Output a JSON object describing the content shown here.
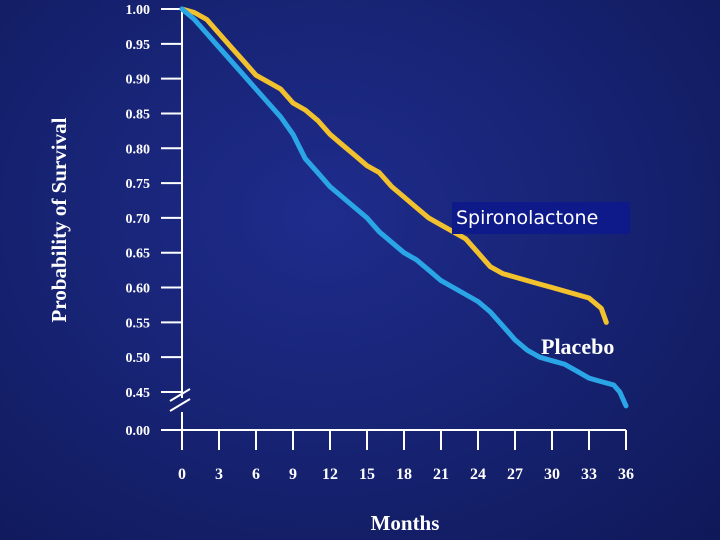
{
  "chart_data": {
    "type": "line",
    "ylabel": "Probability of Survival",
    "xlabel": "Months",
    "y_ticks": [
      "1.00",
      "0.95",
      "0.90",
      "0.85",
      "0.80",
      "0.75",
      "0.70",
      "0.65",
      "0.60",
      "0.55",
      "0.50",
      "0.45",
      "0.00"
    ],
    "x_ticks": [
      "0",
      "3",
      "6",
      "9",
      "12",
      "15",
      "18",
      "21",
      "24",
      "27",
      "30",
      "33",
      "36"
    ],
    "ylim": [
      0.45,
      1.0
    ],
    "xlim": [
      0,
      36
    ],
    "axis_break": true,
    "series": [
      {
        "name": "Spironolactone",
        "color": "#f2c12e",
        "x": [
          0,
          1,
          2,
          3,
          4,
          5,
          6,
          7,
          8,
          9,
          10,
          11,
          12,
          13,
          14,
          15,
          16,
          17,
          18,
          19,
          20,
          21,
          22,
          23,
          24,
          25,
          26,
          27,
          28,
          29,
          30,
          31,
          32,
          33,
          34,
          34.4
        ],
        "y": [
          1.0,
          0.995,
          0.985,
          0.965,
          0.945,
          0.925,
          0.905,
          0.895,
          0.885,
          0.865,
          0.855,
          0.84,
          0.82,
          0.805,
          0.79,
          0.775,
          0.765,
          0.745,
          0.73,
          0.715,
          0.7,
          0.69,
          0.68,
          0.67,
          0.65,
          0.63,
          0.62,
          0.615,
          0.61,
          0.605,
          0.6,
          0.595,
          0.59,
          0.585,
          0.57,
          0.55
        ]
      },
      {
        "name": "Placebo",
        "color": "#2aa6e6",
        "x": [
          0,
          1,
          2,
          3,
          4,
          5,
          6,
          7,
          8,
          9,
          10,
          11,
          12,
          13,
          14,
          15,
          16,
          17,
          18,
          19,
          20,
          21,
          22,
          23,
          24,
          25,
          26,
          27,
          28,
          29,
          30,
          31,
          32,
          33,
          34,
          35,
          35.5,
          36
        ],
        "y": [
          1.0,
          0.985,
          0.965,
          0.945,
          0.925,
          0.905,
          0.885,
          0.865,
          0.845,
          0.82,
          0.785,
          0.765,
          0.745,
          0.73,
          0.715,
          0.7,
          0.68,
          0.665,
          0.65,
          0.64,
          0.625,
          0.61,
          0.6,
          0.59,
          0.58,
          0.565,
          0.545,
          0.525,
          0.51,
          0.5,
          0.495,
          0.49,
          0.48,
          0.47,
          0.465,
          0.46,
          0.45,
          0.43
        ]
      }
    ],
    "annotations": [
      {
        "text": "Spironolactone",
        "series": "Spironolactone"
      },
      {
        "text": "Placebo",
        "series": "Placebo"
      }
    ]
  }
}
